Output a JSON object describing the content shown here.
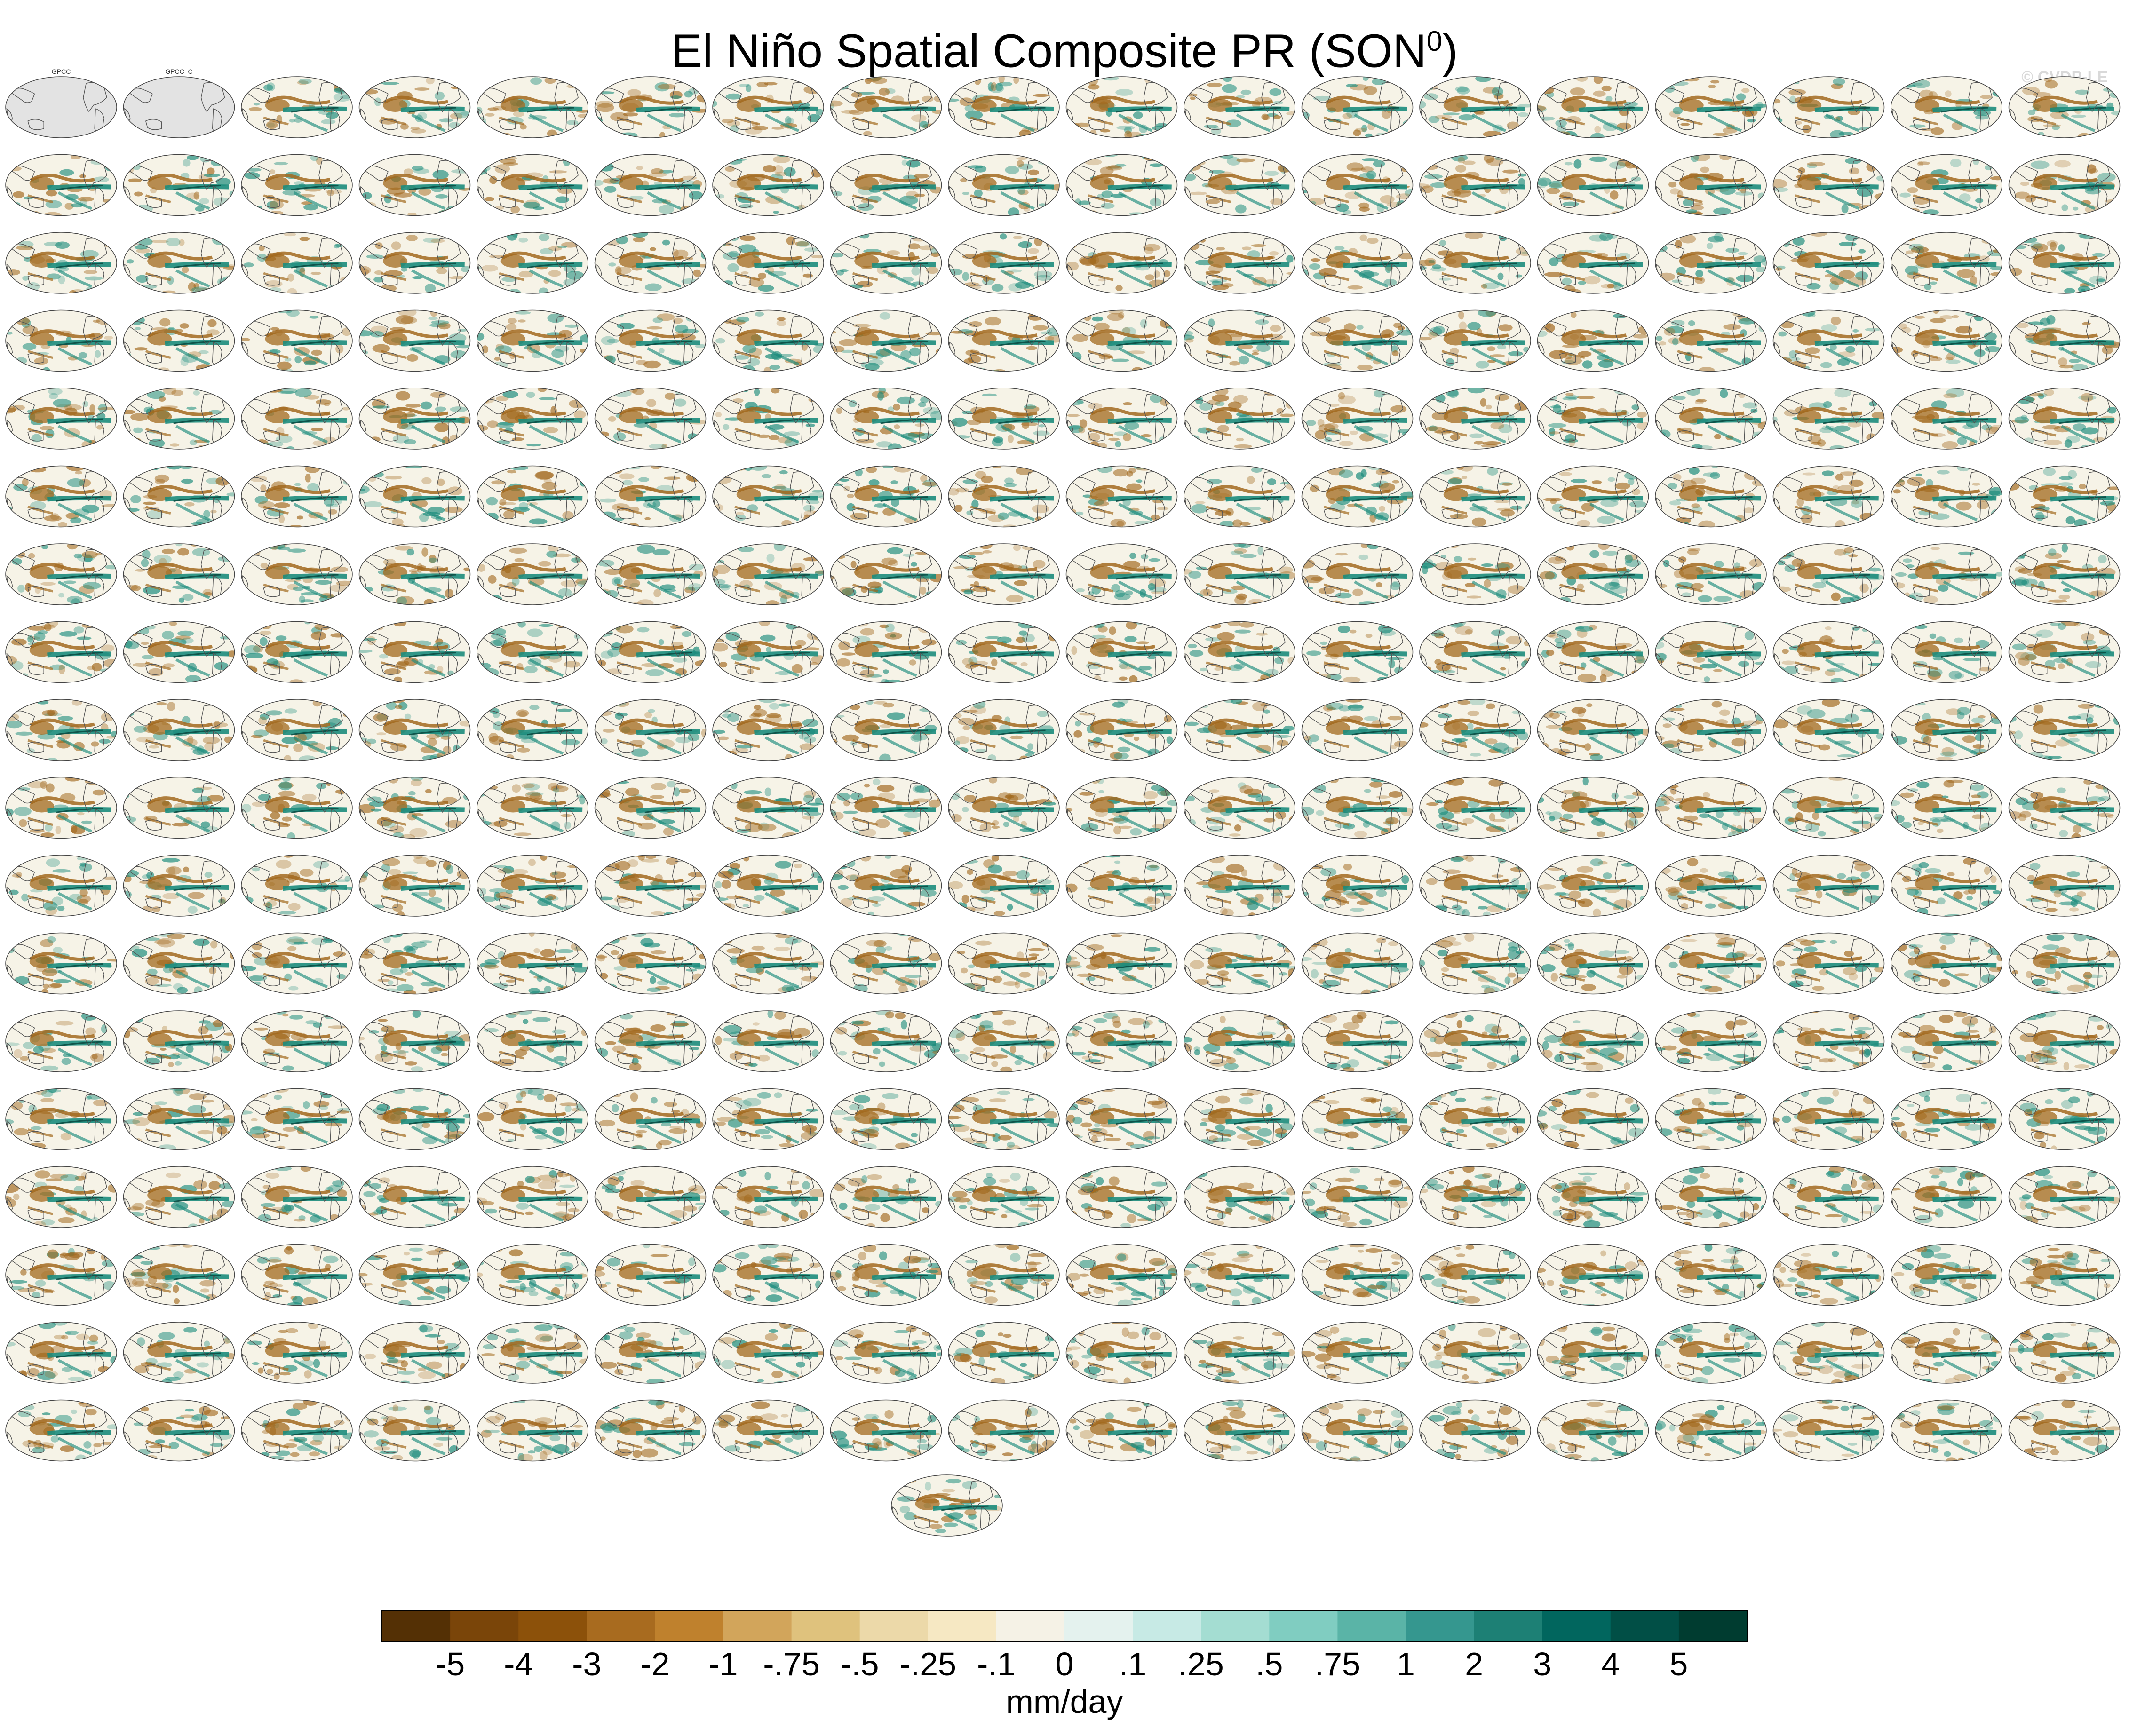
{
  "title": "El Niño Spatial Composite PR (SON",
  "title_sup": "0",
  "title_close": ")",
  "watermark": "© CVDP-LE",
  "chart_data": {
    "type": "heatmap",
    "variable": "PR",
    "composite": "El Niño Spatial Composite",
    "season": "SON",
    "grid": {
      "rows": 18,
      "cols": 18,
      "extra_panels": 1
    },
    "observation_panels": [
      "GPCC",
      "GPCC_C"
    ],
    "colorbar": {
      "unit_label": "mm/day",
      "tick_labels": [
        "-5",
        "-4",
        "-3",
        "-2",
        "-1",
        "-.75",
        "-.5",
        "-.25",
        "-.1",
        "0",
        ".1",
        ".25",
        ".5",
        ".75",
        "1",
        "2",
        "3",
        "4",
        "5"
      ],
      "colors": [
        "#543005",
        "#7a4509",
        "#8c510a",
        "#a86b1f",
        "#bf812d",
        "#d2a55b",
        "#dfc27d",
        "#ecd9a9",
        "#f6e8c3",
        "#f5f2e6",
        "#e4f2ee",
        "#c7eae5",
        "#a4ddd2",
        "#80cdc1",
        "#5ab4a7",
        "#35978f",
        "#1d8075",
        "#01665e",
        "#014f46",
        "#003c30"
      ]
    }
  },
  "colors": {
    "brown": "#a2691e",
    "teal": "#1c8c7c",
    "land_line": "#555555",
    "panel_bg": "#f6f3e7",
    "obs_bg": "#e3e3e3"
  }
}
